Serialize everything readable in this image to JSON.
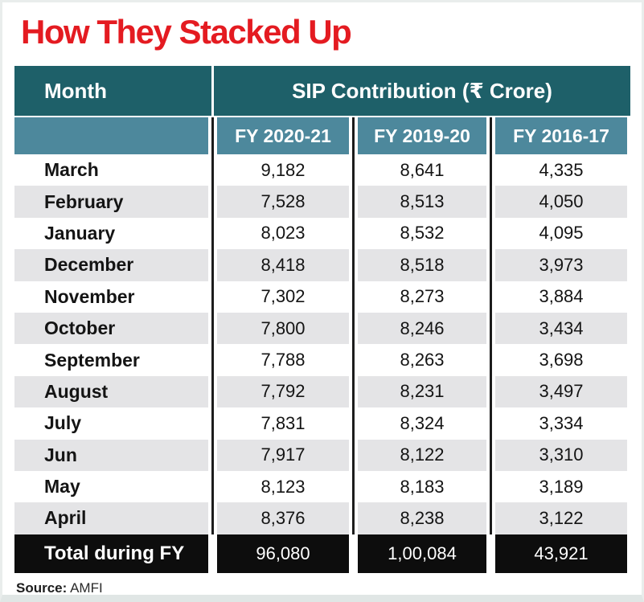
{
  "title": "How They Stacked Up",
  "source": {
    "label": "Source:",
    "value": "AMFI"
  },
  "colors": {
    "title_red": "#e41b21",
    "header_teal": "#1e6069",
    "subheader_blue": "#4d889c",
    "stripe_gray": "#e4e4e6",
    "total_black": "#0d0d0d",
    "separator_black": "#1c1c1c",
    "header_text": "#ffffff"
  },
  "chart_data": {
    "type": "table",
    "title": "How They Stacked Up",
    "group_header": "SIP Contribution (₹ Crore)",
    "columns": [
      "Month",
      "FY 2020-21",
      "FY 2019-20",
      "FY 2016-17"
    ],
    "rows": [
      {
        "month": "March",
        "values": [
          "9,182",
          "8,641",
          "4,335"
        ]
      },
      {
        "month": "February",
        "values": [
          "7,528",
          "8,513",
          "4,050"
        ]
      },
      {
        "month": "January",
        "values": [
          "8,023",
          "8,532",
          "4,095"
        ]
      },
      {
        "month": "December",
        "values": [
          "8,418",
          "8,518",
          "3,973"
        ]
      },
      {
        "month": "November",
        "values": [
          "7,302",
          "8,273",
          "3,884"
        ]
      },
      {
        "month": "October",
        "values": [
          "7,800",
          "8,246",
          "3,434"
        ]
      },
      {
        "month": "September",
        "values": [
          "7,788",
          "8,263",
          "3,698"
        ]
      },
      {
        "month": "August",
        "values": [
          "7,792",
          "8,231",
          "3,497"
        ]
      },
      {
        "month": "July",
        "values": [
          "7,831",
          "8,324",
          "3,334"
        ]
      },
      {
        "month": "Jun",
        "values": [
          "7,917",
          "8,122",
          "3,310"
        ]
      },
      {
        "month": "May",
        "values": [
          "8,123",
          "8,183",
          "3,189"
        ]
      },
      {
        "month": "April",
        "values": [
          "8,376",
          "8,238",
          "3,122"
        ]
      }
    ],
    "total_row": {
      "label": "Total during FY",
      "values": [
        "96,080",
        "1,00,084",
        "43,921"
      ]
    },
    "source": "AMFI",
    "layout": {
      "stripes": "alternating white/gray starting white",
      "legend": "none",
      "grid": "vertical black separators"
    }
  }
}
